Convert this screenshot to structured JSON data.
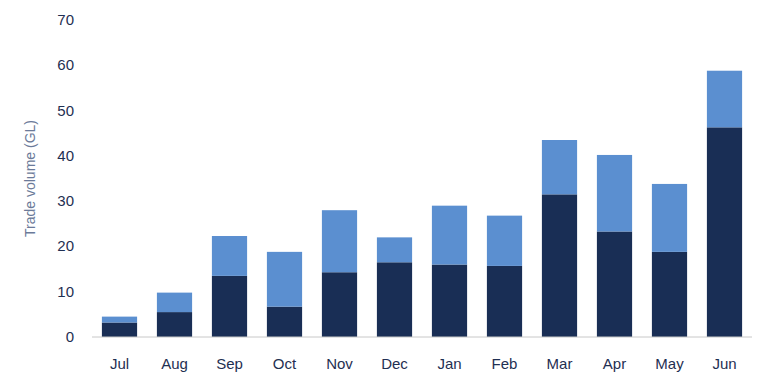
{
  "chart_data": {
    "type": "bar",
    "stacked": true,
    "grid": false,
    "y_label": "Trade volume (GL)",
    "categories": [
      "Jul",
      "Aug",
      "Sep",
      "Oct",
      "Nov",
      "Dec",
      "Jan",
      "Feb",
      "Mar",
      "Apr",
      "May",
      "Jun"
    ],
    "series": [
      {
        "color": "#192e55",
        "values": [
          3.2,
          5.5,
          13.5,
          6.7,
          14.3,
          16.5,
          16,
          15.7,
          31.5,
          23.3,
          18.8,
          46.3
        ]
      },
      {
        "color": "#5b8fd0",
        "values": [
          1.3,
          4.3,
          8.8,
          12.1,
          13.7,
          5.5,
          13,
          11.1,
          12,
          16.9,
          15,
          12.5
        ]
      }
    ],
    "ylim": [
      0,
      70
    ],
    "yticks": [
      0,
      10,
      20,
      30,
      40,
      50,
      60,
      70
    ]
  }
}
